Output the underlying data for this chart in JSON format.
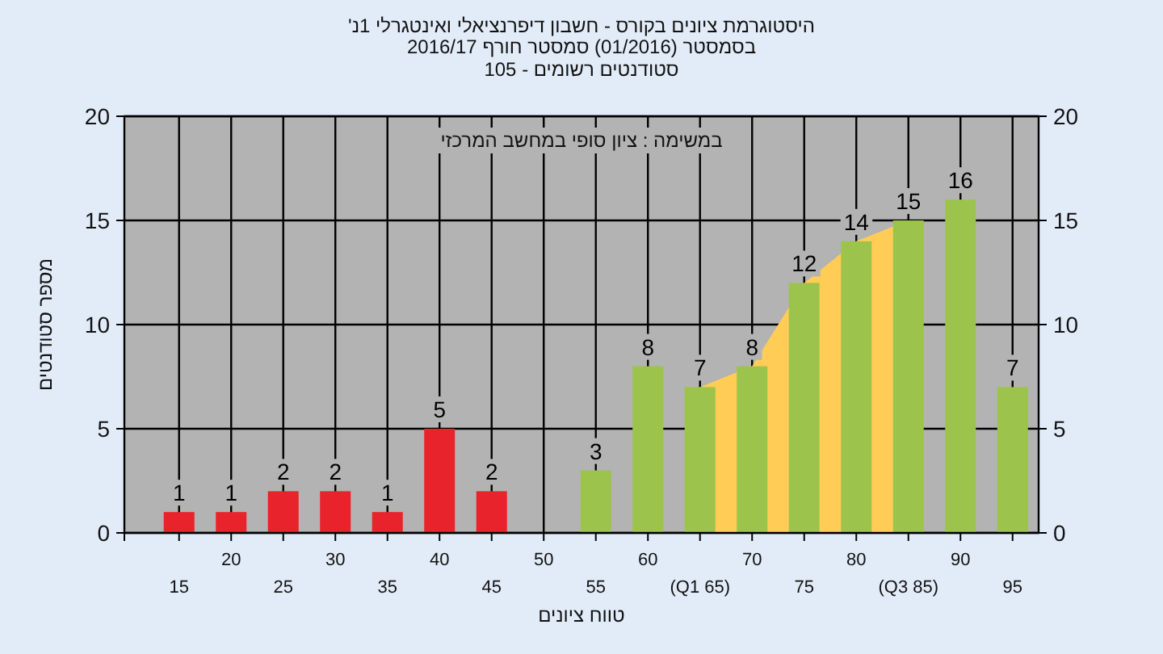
{
  "chart_data": {
    "type": "bar",
    "title": "היסטוגרמת ציונים בקורס - חשבון דיפרנציאלי ואינטגרלי 1נ'",
    "subtitle": "בסמסטר (01/2016) סמסטר חורף 2016/17",
    "annotations": [
      "סטודנטים רשומים - 105",
      "במשימה : ציון סופי במחשב המרכזי"
    ],
    "xlabel": "טווח ציונים",
    "ylabel": "מספר סטודנטים",
    "categories": [
      "15",
      "20",
      "25",
      "30",
      "35",
      "40",
      "45",
      "50",
      "55",
      "60",
      "(Q1 65)",
      "70",
      "75",
      "80",
      "(Q3 85)",
      "90",
      "95"
    ],
    "series": [
      {
        "type": "bar",
        "colors": [
          "#e8232b",
          "#e8232b",
          "#e8232b",
          "#e8232b",
          "#e8232b",
          "#e8232b",
          "#e8232b",
          null,
          "#9cc44c",
          "#9cc44c",
          "#9cc44c",
          "#9cc44c",
          "#9cc44c",
          "#9cc44c",
          "#9cc44c",
          "#9cc44c",
          "#9cc44c"
        ],
        "values": [
          1,
          1,
          2,
          2,
          1,
          5,
          2,
          null,
          3,
          8,
          7,
          8,
          12,
          14,
          15,
          16,
          7
        ]
      },
      {
        "type": "area",
        "color": "#ffcc55",
        "values": [
          null,
          null,
          null,
          null,
          null,
          null,
          null,
          null,
          null,
          null,
          7,
          8,
          12,
          14,
          15,
          null,
          null
        ],
        "value_labels": [
          null,
          null,
          null,
          null,
          null,
          null,
          null,
          null,
          null,
          null,
          null,
          null,
          null,
          null,
          null,
          null,
          null
        ]
      }
    ],
    "ylim": [
      0,
      20
    ],
    "yticks": [
      0,
      5,
      10,
      15,
      20
    ],
    "y2lim": [
      0,
      20
    ],
    "y2ticks": [
      0,
      5,
      10,
      15,
      20
    ],
    "grid": true,
    "data_labels": true
  }
}
